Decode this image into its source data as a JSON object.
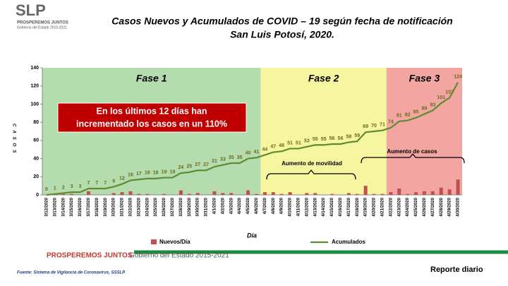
{
  "header": {
    "logo": "SLP",
    "logo_line1": "PROSPEREMOS JUNTOS",
    "logo_line2": "Gobierno del Estado 2015-2021"
  },
  "chart_data": {
    "type": "bar_line",
    "title": [
      "Casos Nuevos y Acumulados de COVID – 19 según fecha de notificación",
      "San Luis Potosí, 2020."
    ],
    "xlabel": "Día",
    "ylabel": "CASOS",
    "categories": [
      "3/12/2020",
      "3/13/2020",
      "3/14/2020",
      "3/15/2020",
      "3/16/2020",
      "3/17/2020",
      "3/18/2020",
      "3/19/2020",
      "3/20/2020",
      "3/21/2020",
      "3/22/2020",
      "3/23/2020",
      "3/24/2020",
      "3/25/2020",
      "3/26/2020",
      "3/27/2020",
      "3/28/2020",
      "3/29/2020",
      "3/30/2020",
      "3/31/2020",
      "4/1/2020",
      "4/2/2020",
      "4/3/2020",
      "4/4/2020",
      "4/5/2020",
      "4/6/2020",
      "4/7/2020",
      "4/8/2020",
      "4/9/2020",
      "4/10/2020",
      "4/11/2020",
      "4/12/2020",
      "4/13/2020",
      "4/14/2020",
      "4/15/2020",
      "4/16/2020",
      "4/17/2020",
      "4/18/2020",
      "4/19/2020",
      "4/20/2020",
      "4/21/2020",
      "4/22/2020",
      "4/23/2020",
      "4/24/2020",
      "4/25/2020",
      "4/26/2020",
      "4/27/2020",
      "4/28/2020",
      "4/29/2020",
      "4/30/2020"
    ],
    "series": [
      {
        "name": "Nuevos/Día",
        "type": "bar",
        "color": "#c0504d",
        "values": [
          0,
          1,
          1,
          1,
          0,
          4,
          0,
          0,
          2,
          3,
          4,
          1,
          1,
          0,
          1,
          0,
          5,
          1,
          2,
          0,
          4,
          2,
          2,
          0,
          5,
          1,
          3,
          3,
          1,
          3,
          0,
          2,
          2,
          0,
          1,
          0,
          2,
          1,
          10,
          1,
          1,
          3,
          7,
          1,
          3,
          4,
          4,
          8,
          6,
          17
        ]
      },
      {
        "name": "Acumulados",
        "type": "line",
        "color": "#5e8c31",
        "values": [
          0,
          1,
          2,
          3,
          3,
          7,
          7,
          7,
          9,
          12,
          16,
          17,
          18,
          18,
          19,
          19,
          24,
          25,
          27,
          27,
          31,
          33,
          35,
          35,
          40,
          41,
          44,
          47,
          48,
          51,
          51,
          53,
          55,
          55,
          56,
          56,
          58,
          59,
          69,
          70,
          71,
          74,
          81,
          82,
          85,
          89,
          93,
          101,
          107,
          124
        ]
      }
    ],
    "ylim": [
      0,
      140
    ],
    "yticks": [
      0,
      20,
      40,
      60,
      80,
      100,
      120,
      140
    ],
    "phases": [
      "Fase 1",
      "Fase 2",
      "Fase 3"
    ],
    "callout": [
      "En los últimos 12 días han",
      "incrementado los casos en un 110%"
    ],
    "annotations": [
      "Aumento de movilidad",
      "Aumento de casos"
    ]
  },
  "footer": {
    "slogan": "PROSPEREMOS JUNTOS",
    "government": "Gobierno del Estado 2015-2021",
    "source": "Fuente: Sistema de Vigilancia de Coronavirus, SSSLP.",
    "report": "Reporte diario"
  }
}
